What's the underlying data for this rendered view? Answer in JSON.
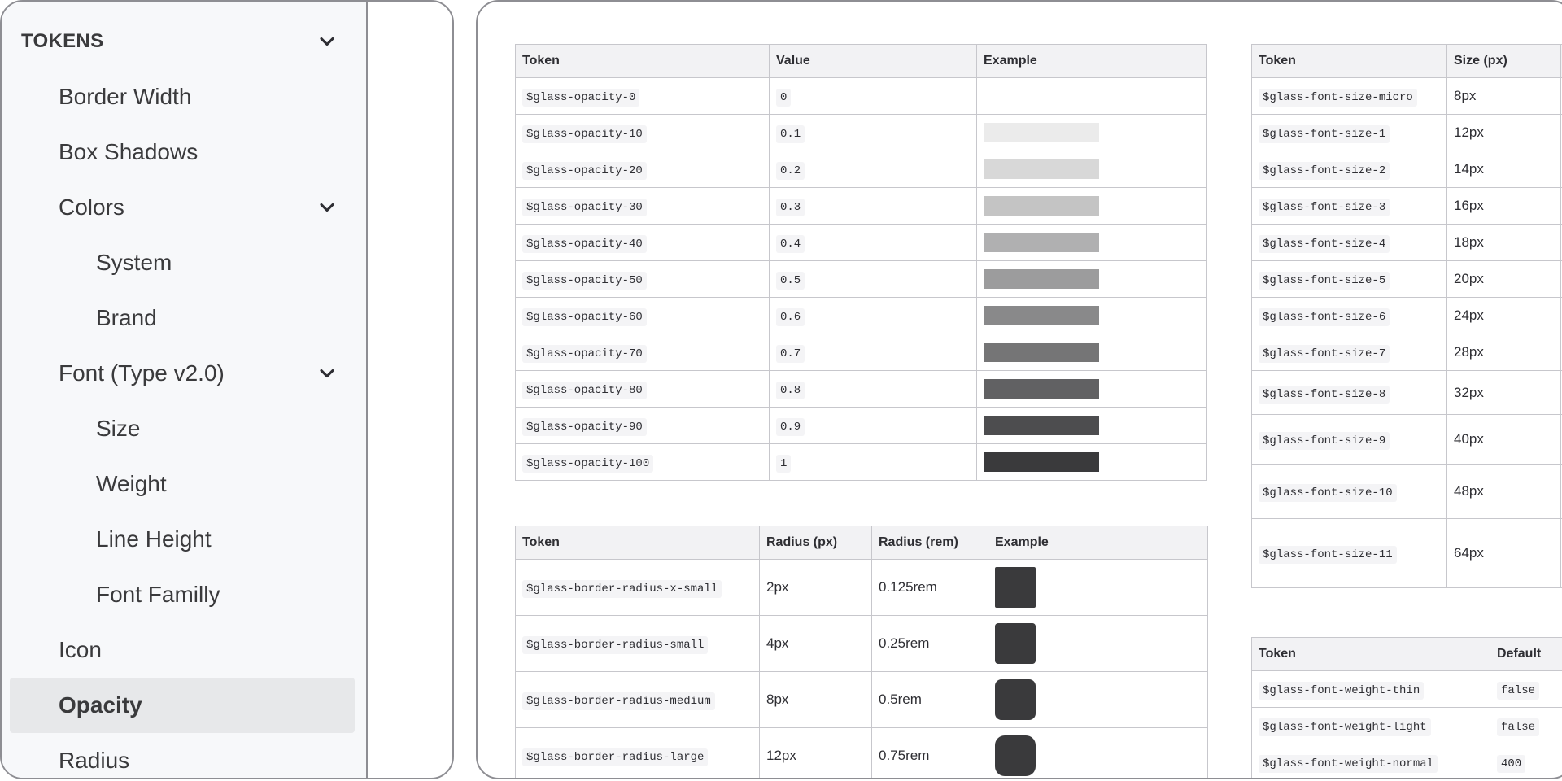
{
  "sidebar": {
    "items": [
      {
        "label": "TOKENS",
        "name": "sidebar-item-tokens",
        "level": 0,
        "chevron": true,
        "active": false
      },
      {
        "label": "Border Width",
        "name": "sidebar-item-border-width",
        "level": 1,
        "chevron": false,
        "active": false
      },
      {
        "label": "Box Shadows",
        "name": "sidebar-item-box-shadows",
        "level": 1,
        "chevron": false,
        "active": false
      },
      {
        "label": "Colors",
        "name": "sidebar-item-colors",
        "level": 1,
        "chevron": true,
        "active": false
      },
      {
        "label": "System",
        "name": "sidebar-item-system",
        "level": 2,
        "chevron": false,
        "active": false
      },
      {
        "label": "Brand",
        "name": "sidebar-item-brand",
        "level": 2,
        "chevron": false,
        "active": false
      },
      {
        "label": "Font (Type v2.0)",
        "name": "sidebar-item-font",
        "level": 1,
        "chevron": true,
        "active": false
      },
      {
        "label": "Size",
        "name": "sidebar-item-size",
        "level": 2,
        "chevron": false,
        "active": false
      },
      {
        "label": "Weight",
        "name": "sidebar-item-weight",
        "level": 2,
        "chevron": false,
        "active": false
      },
      {
        "label": "Line Height",
        "name": "sidebar-item-line-height",
        "level": 2,
        "chevron": false,
        "active": false
      },
      {
        "label": "Font Familly",
        "name": "sidebar-item-font-familly",
        "level": 2,
        "chevron": false,
        "active": false
      },
      {
        "label": "Icon",
        "name": "sidebar-item-icon",
        "level": 1,
        "chevron": false,
        "active": false
      },
      {
        "label": "Opacity",
        "name": "sidebar-item-opacity",
        "level": 1,
        "chevron": false,
        "active": true
      },
      {
        "label": "Radius",
        "name": "sidebar-item-radius",
        "level": 1,
        "chevron": false,
        "active": false
      }
    ]
  },
  "opacity_table": {
    "headers": [
      "Token",
      "Value",
      "Example"
    ],
    "rows": [
      {
        "token": "$glass-opacity-0",
        "value": "0",
        "opacity": 0
      },
      {
        "token": "$glass-opacity-10",
        "value": "0.1",
        "opacity": 0.1
      },
      {
        "token": "$glass-opacity-20",
        "value": "0.2",
        "opacity": 0.2
      },
      {
        "token": "$glass-opacity-30",
        "value": "0.3",
        "opacity": 0.3
      },
      {
        "token": "$glass-opacity-40",
        "value": "0.4",
        "opacity": 0.4
      },
      {
        "token": "$glass-opacity-50",
        "value": "0.5",
        "opacity": 0.5
      },
      {
        "token": "$glass-opacity-60",
        "value": "0.6",
        "opacity": 0.6
      },
      {
        "token": "$glass-opacity-70",
        "value": "0.7",
        "opacity": 0.7
      },
      {
        "token": "$glass-opacity-80",
        "value": "0.8",
        "opacity": 0.8
      },
      {
        "token": "$glass-opacity-90",
        "value": "0.9",
        "opacity": 0.9
      },
      {
        "token": "$glass-opacity-100",
        "value": "1",
        "opacity": 1
      }
    ]
  },
  "radius_table": {
    "headers": [
      "Token",
      "Radius (px)",
      "Radius (rem)",
      "Example"
    ],
    "rows": [
      {
        "token": "$glass-border-radius-x-small",
        "px": "2px",
        "rem": "0.125rem"
      },
      {
        "token": "$glass-border-radius-small",
        "px": "4px",
        "rem": "0.25rem"
      },
      {
        "token": "$glass-border-radius-medium",
        "px": "8px",
        "rem": "0.5rem"
      },
      {
        "token": "$glass-border-radius-large",
        "px": "12px",
        "rem": "0.75rem"
      }
    ]
  },
  "font_size_table": {
    "headers": [
      "Token",
      "Size (px)",
      ""
    ],
    "rows": [
      {
        "token": "$glass-font-size-micro",
        "size": "8px"
      },
      {
        "token": "$glass-font-size-1",
        "size": "12px"
      },
      {
        "token": "$glass-font-size-2",
        "size": "14px"
      },
      {
        "token": "$glass-font-size-3",
        "size": "16px"
      },
      {
        "token": "$glass-font-size-4",
        "size": "18px"
      },
      {
        "token": "$glass-font-size-5",
        "size": "20px"
      },
      {
        "token": "$glass-font-size-6",
        "size": "24px"
      },
      {
        "token": "$glass-font-size-7",
        "size": "28px"
      },
      {
        "token": "$glass-font-size-8",
        "size": "32px"
      },
      {
        "token": "$glass-font-size-9",
        "size": "40px"
      },
      {
        "token": "$glass-font-size-10",
        "size": "48px"
      },
      {
        "token": "$glass-font-size-11",
        "size": "64px"
      }
    ]
  },
  "font_weight_table": {
    "headers": [
      "Token",
      "Default"
    ],
    "rows": [
      {
        "token": "$glass-font-weight-thin",
        "default": "false"
      },
      {
        "token": "$glass-font-weight-light",
        "default": "false"
      },
      {
        "token": "$glass-font-weight-normal",
        "default": "400"
      }
    ]
  },
  "colors": {
    "sidebar_bg": "#f7f8fa",
    "active_bg": "#e7e8ea",
    "swatch": "#3a3a3c",
    "border": "#8e8e93"
  }
}
